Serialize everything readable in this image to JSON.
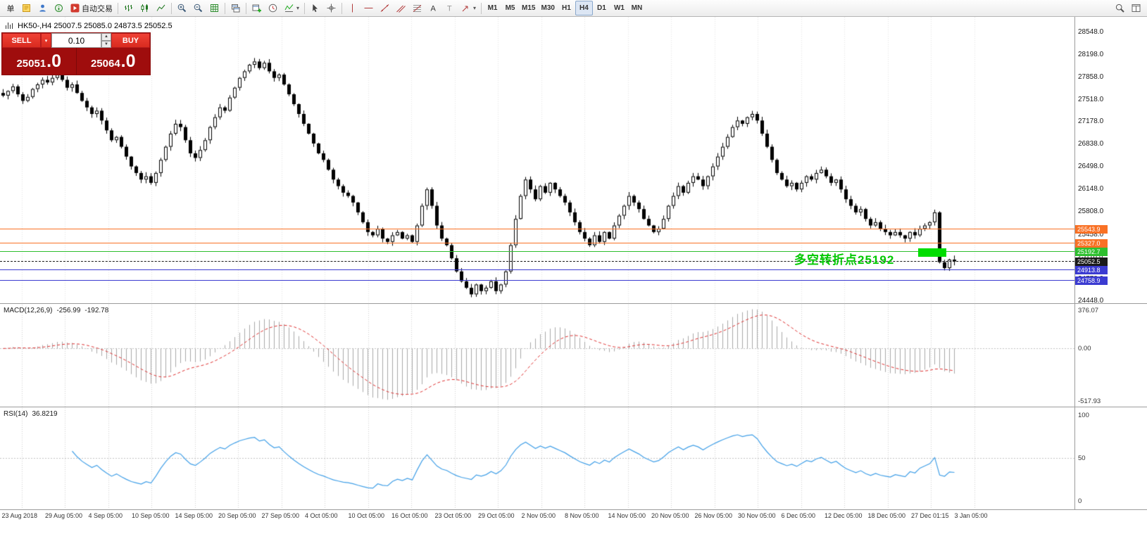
{
  "toolbar": {
    "new_order_label": "单",
    "autotrade_label": "自动交易",
    "timeframes": [
      "M1",
      "M5",
      "M15",
      "M30",
      "H1",
      "H4",
      "D1",
      "W1",
      "MN"
    ],
    "active_timeframe": "H4",
    "buttons": [
      {
        "name": "new-order",
        "label": "单"
      },
      {
        "name": "terminal",
        "icon": "doc-yellow"
      },
      {
        "name": "profile",
        "icon": "user-blue"
      },
      {
        "name": "help",
        "icon": "info-green"
      },
      {
        "name": "autotrading",
        "icon": "autotrade",
        "label": "自动交易"
      },
      {
        "sep": true
      },
      {
        "name": "chart-bars",
        "icon": "bars"
      },
      {
        "name": "chart-candles",
        "icon": "candles"
      },
      {
        "name": "chart-line",
        "icon": "linechart"
      },
      {
        "sep": true
      },
      {
        "name": "zoom-in",
        "icon": "zoomin"
      },
      {
        "name": "zoom-out",
        "icon": "zoomout"
      },
      {
        "name": "grid",
        "icon": "grid"
      },
      {
        "sep": true
      },
      {
        "name": "tile-windows",
        "icon": "cascade"
      },
      {
        "sep": true
      },
      {
        "name": "new-chart",
        "icon": "newchart"
      },
      {
        "name": "auto-scroll",
        "icon": "clock"
      },
      {
        "name": "indicators",
        "icon": "indicator",
        "caret": true
      },
      {
        "sep": true
      },
      {
        "name": "cursor",
        "icon": "cursor"
      },
      {
        "name": "crosshair",
        "icon": "crosshair"
      },
      {
        "sep": true
      },
      {
        "name": "vertical-line",
        "icon": "vline"
      },
      {
        "name": "horizontal-line",
        "icon": "hline"
      },
      {
        "name": "trendline",
        "icon": "trend"
      },
      {
        "name": "equidistant-channel",
        "icon": "channel"
      },
      {
        "name": "fibonacci",
        "icon": "fibo"
      },
      {
        "name": "text",
        "icon": "textA"
      },
      {
        "name": "text-label",
        "icon": "labelT"
      },
      {
        "name": "arrows",
        "icon": "arrowtool",
        "caret": true
      },
      {
        "sep": true
      },
      {
        "tf_group": true
      },
      {
        "spacer": true
      },
      {
        "name": "search",
        "icon": "search"
      },
      {
        "name": "chart-window",
        "icon": "window"
      }
    ]
  },
  "chart_header": {
    "title": "HK50-,H4 25007.5 25085.0 24873.5 25052.5"
  },
  "trade_panel": {
    "sell_label": "SELL",
    "buy_label": "BUY",
    "volume": "0.10",
    "sell_price": "25051.0",
    "buy_price": "25064.0"
  },
  "price_axis_labels": [
    "28548.0",
    "28198.0",
    "27858.0",
    "27518.0",
    "27178.0",
    "26838.0",
    "26498.0",
    "26148.0",
    "25808.0",
    "25458.0",
    "25118.0",
    "24778.0",
    "24448.0"
  ],
  "hlines": [
    {
      "name": "resistance-1",
      "price": 25543.9,
      "label": "25543.9",
      "color": "#f97125",
      "style": "solid"
    },
    {
      "name": "resistance-2",
      "price": 25327.0,
      "label": "25327.0",
      "color": "#f97125",
      "style": "solid"
    },
    {
      "name": "pivot",
      "price": 25192.7,
      "label": "25192.7",
      "color": "#2fbf2f",
      "style": "solid"
    },
    {
      "name": "current-price",
      "price": 25052.5,
      "label": "25052.5",
      "color": "#1a1a1a",
      "style": "dashed",
      "current": true
    },
    {
      "name": "support-1",
      "price": 24913.8,
      "label": "24913.8",
      "color": "#3b3bd1",
      "style": "solid"
    },
    {
      "name": "support-2",
      "price": 24758.9,
      "label": "24758.9",
      "color": "#3b3bd1",
      "style": "solid"
    }
  ],
  "annotation": {
    "text": "多空转折点25192",
    "color": "#00c800"
  },
  "highlight_box": {
    "price_top": 25248,
    "price_bottom": 25122,
    "start_index": 186,
    "end_index": 191,
    "color": "#00dd00"
  },
  "macd": {
    "label": "MACD(12,26,9)",
    "value_1": "-256.99",
    "value_2": "-192.78",
    "axis_labels": [
      "376.07",
      "0.00",
      "-517.93"
    ],
    "axis_values": [
      376.07,
      0,
      -517.93
    ],
    "fast": 12,
    "slow": 26,
    "signal": 9
  },
  "rsi": {
    "label": "RSI(14)",
    "value": "36.8219",
    "axis_labels": [
      "100",
      "50",
      "0"
    ],
    "axis_values": [
      100,
      50,
      0
    ],
    "period": 14
  },
  "time_axis_labels": [
    "23 Aug 2018",
    "29 Aug 05:00",
    "4 Sep 05:00",
    "10 Sep 05:00",
    "14 Sep 05:00",
    "20 Sep 05:00",
    "27 Sep 05:00",
    "4 Oct 05:00",
    "10 Oct 05:00",
    "16 Oct 05:00",
    "23 Oct 05:00",
    "29 Oct 05:00",
    "2 Nov 05:00",
    "8 Nov 05:00",
    "14 Nov 05:00",
    "20 Nov 05:00",
    "26 Nov 05:00",
    "30 Nov 05:00",
    "6 Dec 05:00",
    "12 Dec 05:00",
    "18 Dec 05:00",
    "27 Dec 01:15",
    "3 Jan 05:00"
  ],
  "chart_data": {
    "type": "candlestick",
    "symbol": "HK50-",
    "timeframe": "H4",
    "open": 25007.5,
    "high": 25085.0,
    "low": 24873.5,
    "close": 25052.5,
    "y_range": [
      24415,
      28780
    ],
    "closes": [
      27580,
      27650,
      27720,
      27600,
      27500,
      27560,
      27680,
      27750,
      27820,
      27780,
      27850,
      27900,
      27820,
      27700,
      27750,
      27620,
      27500,
      27400,
      27300,
      27350,
      27200,
      27050,
      26900,
      26950,
      26800,
      26650,
      26500,
      26400,
      26300,
      26350,
      26250,
      26400,
      26600,
      26800,
      27000,
      27150,
      27100,
      26900,
      26700,
      26630,
      26750,
      26900,
      27100,
      27250,
      27400,
      27350,
      27550,
      27700,
      27850,
      27950,
      28050,
      28100,
      28000,
      28080,
      27950,
      27850,
      27900,
      27750,
      27600,
      27450,
      27300,
      27150,
      27000,
      26850,
      26700,
      26600,
      26450,
      26300,
      26200,
      26100,
      26050,
      25950,
      25800,
      25650,
      25500,
      25450,
      25550,
      25400,
      25350,
      25450,
      25500,
      25400,
      25450,
      25350,
      25600,
      25900,
      26150,
      25900,
      25600,
      25400,
      25300,
      25100,
      24900,
      24750,
      24650,
      24550,
      24700,
      24600,
      24650,
      24750,
      24600,
      24700,
      24900,
      25300,
      25700,
      26050,
      26300,
      26150,
      26000,
      26200,
      26100,
      26250,
      26150,
      26050,
      25950,
      25800,
      25650,
      25500,
      25400,
      25300,
      25450,
      25350,
      25500,
      25400,
      25600,
      25750,
      25900,
      26050,
      25950,
      25850,
      25700,
      25600,
      25500,
      25550,
      25700,
      25900,
      26050,
      26200,
      26100,
      26250,
      26350,
      26300,
      26200,
      26350,
      26500,
      26650,
      26800,
      26950,
      27100,
      27200,
      27150,
      27250,
      27300,
      27200,
      27000,
      26800,
      26600,
      26400,
      26300,
      26200,
      26250,
      26150,
      26250,
      26350,
      26300,
      26400,
      26450,
      26350,
      26250,
      26300,
      26150,
      26000,
      25900,
      25800,
      25850,
      25700,
      25600,
      25650,
      25550,
      25500,
      25450,
      25500,
      25450,
      25400,
      25500,
      25450,
      25550,
      25600,
      25650,
      25800,
      25040,
      24950,
      25080,
      25052.5
    ]
  }
}
